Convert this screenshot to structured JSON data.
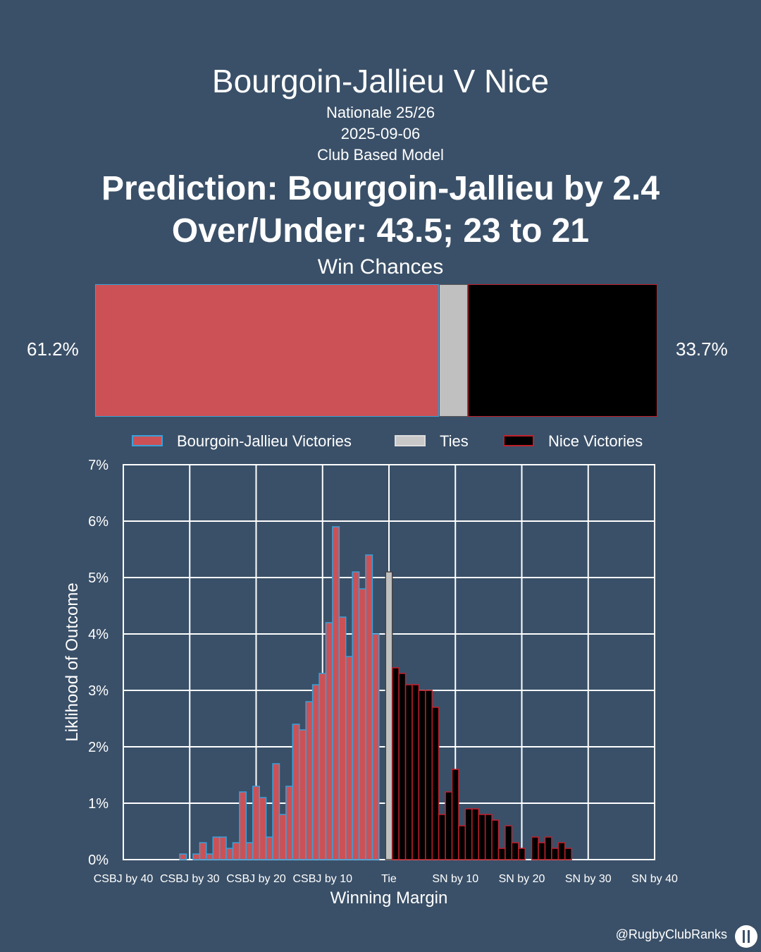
{
  "header": {
    "title": "Bourgoin-Jallieu V Nice",
    "competition": "Nationale 25/26",
    "date": "2025-09-06",
    "model": "Club Based Model",
    "prediction": "Prediction: Bourgoin-Jallieu by 2.4",
    "over_under": "Over/Under: 43.5; 23 to 21"
  },
  "win_chances": {
    "title": "Win Chances",
    "home_pct": 61.2,
    "tie_pct": 5.1,
    "away_pct": 33.7,
    "home_label": "61.2%",
    "away_label": "33.7%"
  },
  "legend": {
    "home": "Bourgoin-Jallieu Victories",
    "tie": "Ties",
    "away": "Nice Victories"
  },
  "colors": {
    "background": "#3a5068",
    "home_fill": "#cc5156",
    "home_edge": "#3aa0d8",
    "tie_fill": "#c0c0c0",
    "away_fill": "#000000",
    "away_edge": "#c0202a",
    "grid": "#ffffff"
  },
  "chart_data": {
    "type": "bar",
    "xlabel": "Winning Margin",
    "ylabel": "Liklihood of Outcome",
    "xlim": [
      -40,
      40
    ],
    "ylim": [
      0,
      7
    ],
    "x_ticks": [
      -40,
      -30,
      -20,
      -10,
      0,
      10,
      20,
      30,
      40
    ],
    "x_tick_labels": [
      "CSBJ by 40",
      "CSBJ by 30",
      "CSBJ by 20",
      "CSBJ by 10",
      "Tie",
      "SN by 10",
      "SN by 20",
      "SN by 30",
      "SN by 40"
    ],
    "y_ticks": [
      0,
      1,
      2,
      3,
      4,
      5,
      6,
      7
    ],
    "y_tick_labels": [
      "0%",
      "1%",
      "2%",
      "3%",
      "4%",
      "5%",
      "6%",
      "7%"
    ],
    "grid": true,
    "series": [
      {
        "name": "Bourgoin-Jallieu Victories",
        "x": [
          -31,
          -30,
          -29,
          -28,
          -27,
          -26,
          -25,
          -24,
          -23,
          -22,
          -21,
          -20,
          -19,
          -18,
          -17,
          -16,
          -15,
          -14,
          -13,
          -12,
          -11,
          -10,
          -9,
          -8,
          -7,
          -6,
          -5,
          -4,
          -3,
          -2,
          -1
        ],
        "values": [
          0.1,
          0,
          0.1,
          0.3,
          0.1,
          0.4,
          0.4,
          0.2,
          0.3,
          1.2,
          0.3,
          1.3,
          1.1,
          0.4,
          1.7,
          0.8,
          1.3,
          2.4,
          2.3,
          2.8,
          3.1,
          3.3,
          4.2,
          5.9,
          4.3,
          3.6,
          5.1,
          4.8,
          5.4,
          4.0,
          0
        ]
      },
      {
        "name": "Ties",
        "x": [
          0
        ],
        "values": [
          5.1
        ]
      },
      {
        "name": "Nice Victories",
        "x": [
          1,
          2,
          3,
          4,
          5,
          6,
          7,
          8,
          9,
          10,
          11,
          12,
          13,
          14,
          15,
          16,
          17,
          18,
          19,
          20,
          21,
          22,
          23,
          24,
          25,
          26,
          27,
          28
        ],
        "values": [
          3.4,
          3.3,
          3.1,
          3.1,
          3.0,
          3.0,
          2.7,
          0.8,
          1.2,
          1.6,
          0.6,
          0.9,
          0.9,
          0.8,
          0.8,
          0.7,
          0.2,
          0.6,
          0.3,
          0.2,
          0,
          0.4,
          0.3,
          0.4,
          0.2,
          0.3,
          0.2,
          0
        ]
      }
    ]
  },
  "watermark": "@RugbyClubRanks"
}
